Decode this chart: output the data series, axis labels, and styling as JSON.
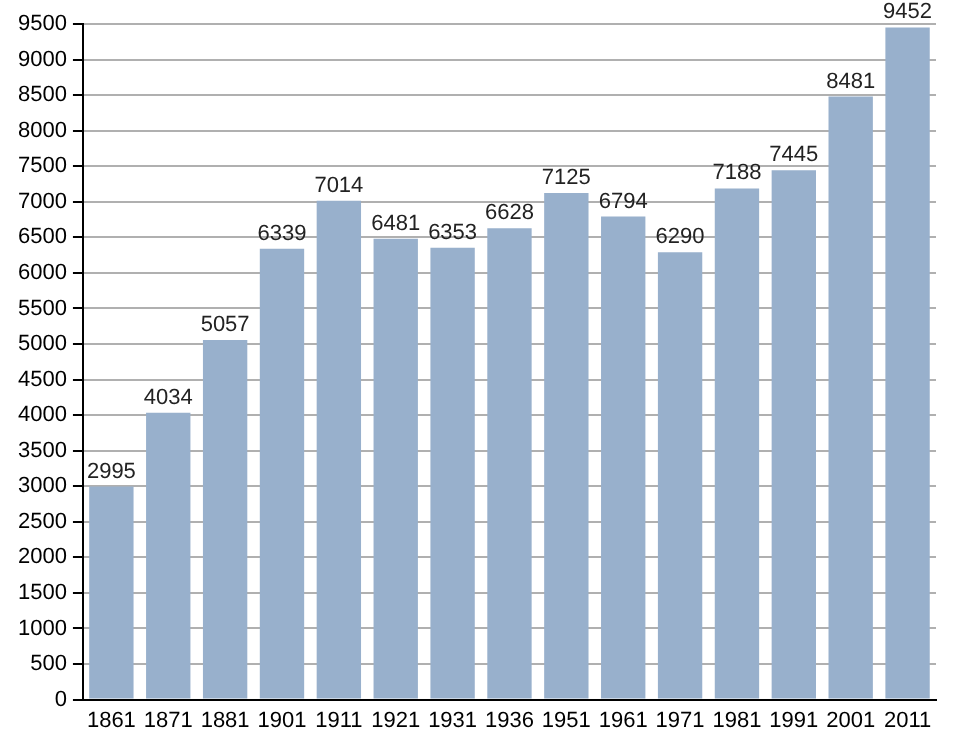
{
  "chart_data": {
    "type": "bar",
    "categories": [
      "1861",
      "1871",
      "1881",
      "1901",
      "1911",
      "1921",
      "1931",
      "1936",
      "1951",
      "1961",
      "1971",
      "1981",
      "1991",
      "2001",
      "2011"
    ],
    "values": [
      2995,
      4034,
      5057,
      6339,
      7014,
      6481,
      6353,
      6628,
      7125,
      6794,
      6290,
      7188,
      7445,
      8481,
      9452
    ],
    "color": "#98b0cc",
    "ylim": [
      0,
      9500
    ],
    "yticks": [
      0,
      500,
      1000,
      1500,
      2000,
      2500,
      3000,
      3500,
      4000,
      4500,
      5000,
      5500,
      6000,
      6500,
      7000,
      7500,
      8000,
      8500,
      9000,
      9500
    ],
    "grid": "y",
    "data_labels": true
  }
}
